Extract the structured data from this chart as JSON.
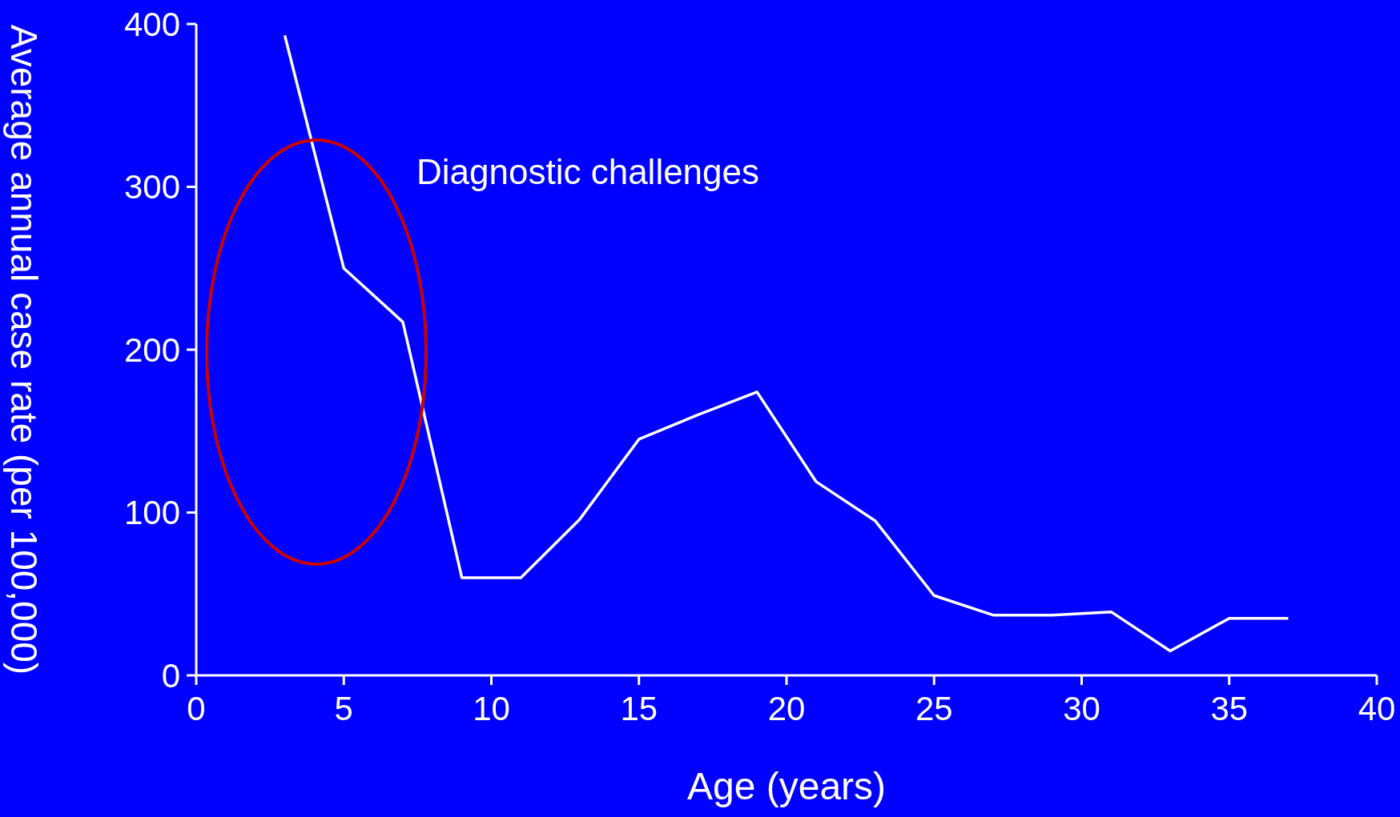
{
  "chart_data": {
    "type": "line",
    "xlabel": "Age (years)",
    "ylabel": "Average annual case rate (per 100,000)",
    "x": [
      3,
      5,
      7,
      9,
      11,
      13,
      15,
      17,
      19,
      21,
      23,
      25,
      27,
      29,
      31,
      33,
      35,
      37
    ],
    "values": [
      393,
      250,
      217,
      60,
      60,
      96,
      145,
      160,
      174,
      119,
      95,
      49,
      37,
      37,
      39,
      15,
      35,
      35
    ],
    "color": "#ffffff",
    "marker": "none",
    "xlim": [
      0,
      40
    ],
    "xticks": [
      0,
      5,
      10,
      15,
      20,
      25,
      30,
      35,
      40
    ],
    "ylim": [
      0,
      400
    ],
    "yticks": [
      0,
      100,
      200,
      300,
      400
    ],
    "annotations": [
      "Diagnostic challenges"
    ]
  }
}
